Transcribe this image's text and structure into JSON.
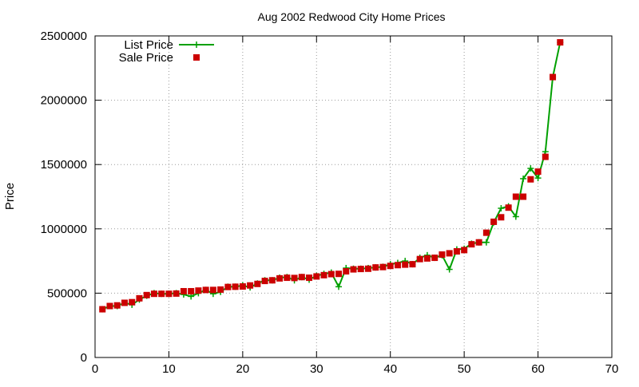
{
  "chart_data": {
    "type": "line",
    "title": "Aug 2002 Redwood City Home Prices",
    "xlabel": "",
    "ylabel": "Price",
    "xlim": [
      0,
      70
    ],
    "ylim": [
      0,
      2500000
    ],
    "xticks": [
      0,
      10,
      20,
      30,
      40,
      50,
      60,
      70
    ],
    "yticks": [
      0,
      500000,
      1000000,
      1500000,
      2000000,
      2500000
    ],
    "grid": true,
    "legend_position": "top-left",
    "series": [
      {
        "name": "List Price",
        "style": "line-with-plus-markers",
        "color": "#00a000",
        "points": [
          [
            1,
            375000
          ],
          [
            2,
            400000
          ],
          [
            3,
            400000
          ],
          [
            4,
            425000
          ],
          [
            5,
            410000
          ],
          [
            6,
            450000
          ],
          [
            7,
            480000
          ],
          [
            8,
            500000
          ],
          [
            9,
            495000
          ],
          [
            10,
            495000
          ],
          [
            11,
            500000
          ],
          [
            12,
            490000
          ],
          [
            13,
            475000
          ],
          [
            14,
            500000
          ],
          [
            15,
            525000
          ],
          [
            16,
            495000
          ],
          [
            17,
            510000
          ],
          [
            18,
            550000
          ],
          [
            19,
            550000
          ],
          [
            20,
            560000
          ],
          [
            21,
            545000
          ],
          [
            22,
            575000
          ],
          [
            23,
            600000
          ],
          [
            24,
            600000
          ],
          [
            25,
            620000
          ],
          [
            26,
            625000
          ],
          [
            27,
            600000
          ],
          [
            28,
            625000
          ],
          [
            29,
            605000
          ],
          [
            30,
            635000
          ],
          [
            31,
            650000
          ],
          [
            32,
            660000
          ],
          [
            33,
            550000
          ],
          [
            34,
            695000
          ],
          [
            35,
            690000
          ],
          [
            36,
            690000
          ],
          [
            37,
            695000
          ],
          [
            38,
            700000
          ],
          [
            39,
            705000
          ],
          [
            40,
            725000
          ],
          [
            41,
            735000
          ],
          [
            42,
            750000
          ],
          [
            43,
            725000
          ],
          [
            44,
            775000
          ],
          [
            45,
            795000
          ],
          [
            46,
            775000
          ],
          [
            47,
            795000
          ],
          [
            48,
            685000
          ],
          [
            49,
            840000
          ],
          [
            50,
            845000
          ],
          [
            51,
            885000
          ],
          [
            52,
            895000
          ],
          [
            53,
            895000
          ],
          [
            54,
            1050000
          ],
          [
            55,
            1160000
          ],
          [
            56,
            1175000
          ],
          [
            57,
            1095000
          ],
          [
            58,
            1390000
          ],
          [
            59,
            1470000
          ],
          [
            60,
            1395000
          ],
          [
            61,
            1600000
          ],
          [
            62,
            2180000
          ],
          [
            63,
            2450000
          ]
        ]
      },
      {
        "name": "Sale Price",
        "style": "square-markers",
        "color": "#cc0000",
        "points": [
          [
            1,
            375000
          ],
          [
            2,
            400000
          ],
          [
            3,
            405000
          ],
          [
            4,
            425000
          ],
          [
            5,
            430000
          ],
          [
            6,
            460000
          ],
          [
            7,
            485000
          ],
          [
            8,
            495000
          ],
          [
            9,
            495000
          ],
          [
            10,
            495000
          ],
          [
            11,
            497000
          ],
          [
            12,
            515000
          ],
          [
            13,
            515000
          ],
          [
            14,
            520000
          ],
          [
            15,
            525000
          ],
          [
            16,
            525000
          ],
          [
            17,
            528000
          ],
          [
            18,
            548000
          ],
          [
            19,
            550000
          ],
          [
            20,
            552000
          ],
          [
            21,
            560000
          ],
          [
            22,
            572000
          ],
          [
            23,
            595000
          ],
          [
            24,
            600000
          ],
          [
            25,
            615000
          ],
          [
            26,
            620000
          ],
          [
            27,
            618000
          ],
          [
            28,
            625000
          ],
          [
            29,
            620000
          ],
          [
            30,
            630000
          ],
          [
            31,
            640000
          ],
          [
            32,
            648000
          ],
          [
            33,
            650000
          ],
          [
            34,
            670000
          ],
          [
            35,
            685000
          ],
          [
            36,
            688000
          ],
          [
            37,
            690000
          ],
          [
            38,
            700000
          ],
          [
            39,
            703000
          ],
          [
            40,
            712000
          ],
          [
            41,
            718000
          ],
          [
            42,
            722000
          ],
          [
            43,
            725000
          ],
          [
            44,
            765000
          ],
          [
            45,
            770000
          ],
          [
            46,
            775000
          ],
          [
            47,
            800000
          ],
          [
            48,
            810000
          ],
          [
            49,
            825000
          ],
          [
            50,
            835000
          ],
          [
            51,
            880000
          ],
          [
            52,
            895000
          ],
          [
            53,
            970000
          ],
          [
            54,
            1055000
          ],
          [
            55,
            1090000
          ],
          [
            56,
            1165000
          ],
          [
            57,
            1250000
          ],
          [
            58,
            1250000
          ],
          [
            59,
            1385000
          ],
          [
            60,
            1445000
          ],
          [
            61,
            1560000
          ],
          [
            62,
            2180000
          ],
          [
            63,
            2450000
          ]
        ]
      }
    ]
  }
}
